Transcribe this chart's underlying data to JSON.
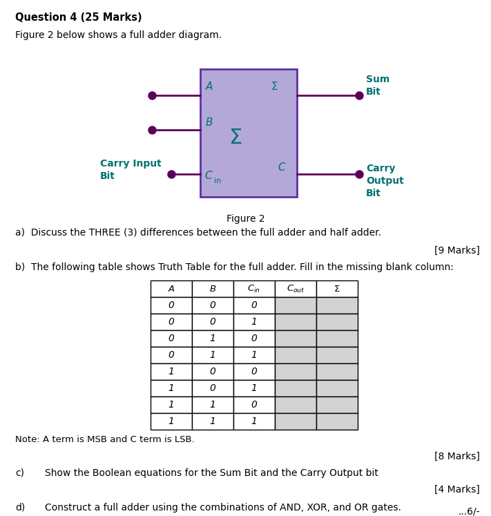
{
  "title": "Question 4 (25 Marks)",
  "subtitle": "Figure 2 below shows a full adder diagram.",
  "figure_label": "Figure 2",
  "box_color": "#b3a8d8",
  "box_border_color": "#6030a0",
  "wire_color": "#5c005c",
  "label_color_teal": "#007070",
  "label_color_dark": "#000000",
  "part_a": "a)  Discuss the THREE (3) differences between the full adder and half adder.",
  "marks_a": "[9 Marks]",
  "part_b": "b)  The following table shows Truth Table for the full adder. Fill in the missing blank column:",
  "marks_b": "[8 Marks]",
  "part_c_label": "c)",
  "part_c": "Show the Boolean equations for the Sum Bit and the Carry Output bit",
  "marks_c": "[4 Marks]",
  "part_d_label": "d)",
  "part_d": "Construct a full adder using the combinations of AND, XOR, and OR gates.",
  "marks_d": "[4 Marks]",
  "note": "Note: A term is MSB and C term is LSB.",
  "footer": "...6/-",
  "table_data": [
    [
      "0",
      "0",
      "0"
    ],
    [
      "0",
      "0",
      "1"
    ],
    [
      "0",
      "1",
      "0"
    ],
    [
      "0",
      "1",
      "1"
    ],
    [
      "1",
      "0",
      "0"
    ],
    [
      "1",
      "0",
      "1"
    ],
    [
      "1",
      "1",
      "0"
    ],
    [
      "1",
      "1",
      "1"
    ]
  ]
}
